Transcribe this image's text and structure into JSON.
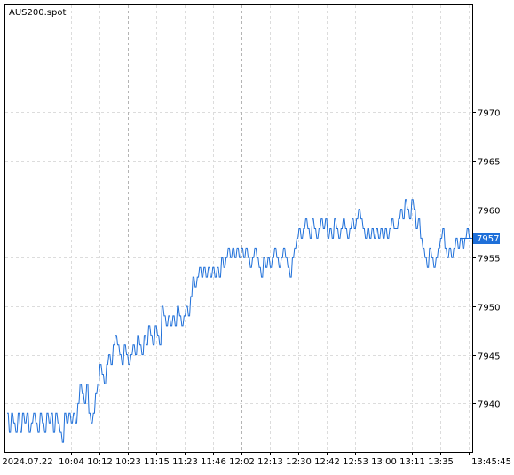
{
  "chart_data": {
    "type": "line",
    "symbol": "AUS200.spot",
    "ylim": [
      7935,
      7981
    ],
    "y_ticks": [
      7940,
      7945,
      7950,
      7955,
      7960,
      7965,
      7970
    ],
    "y_tick_labels": [
      "7940",
      "7945",
      "7950",
      "7955",
      "7960",
      "7965",
      "7970"
    ],
    "x_tick_labels": [
      "2024.07.22",
      "10:04",
      "10:12",
      "10:23",
      "11:15",
      "11:23",
      "11:46",
      "12:02",
      "12:13",
      "12:30",
      "12:42",
      "12:53",
      "13:00",
      "13:11",
      "13:35",
      "13:45:45"
    ],
    "last_price": 7957,
    "last_price_label": "7957",
    "series_color": "#1e6fd9",
    "grid": true,
    "grid_style": "dashed",
    "ticks_per_bar": 2,
    "series": [
      {
        "values": [
          7939,
          7937,
          7939,
          7938,
          7937,
          7939,
          7937,
          7939,
          7938,
          7939,
          7937,
          7938,
          7939,
          7938,
          7937,
          7939,
          7938,
          7937,
          7939,
          7938,
          7939,
          7937,
          7939,
          7938,
          7937,
          7936,
          7939,
          7938,
          7939,
          7938,
          7939,
          7938,
          7940,
          7942,
          7941,
          7940,
          7942,
          7939,
          7938,
          7939,
          7941,
          7942,
          7944,
          7943,
          7942,
          7944,
          7945,
          7944,
          7946,
          7947,
          7946,
          7945,
          7944,
          7946,
          7945,
          7944,
          7945,
          7946,
          7945,
          7947,
          7946,
          7945,
          7947,
          7946,
          7948,
          7947,
          7946,
          7948,
          7947,
          7946,
          7950,
          7949,
          7948,
          7949,
          7948,
          7949,
          7948,
          7950,
          7949,
          7948,
          7949,
          7950,
          7949,
          7951,
          7953,
          7952,
          7953,
          7954,
          7953,
          7954,
          7953,
          7954,
          7953,
          7954,
          7953,
          7954,
          7953,
          7955,
          7954,
          7955,
          7956,
          7955,
          7956,
          7955,
          7956,
          7955,
          7956,
          7955,
          7956,
          7955,
          7954,
          7955,
          7956,
          7955,
          7954,
          7953,
          7955,
          7954,
          7955,
          7954,
          7955,
          7956,
          7955,
          7954,
          7955,
          7956,
          7955,
          7954,
          7953,
          7955,
          7956,
          7957,
          7958,
          7957,
          7958,
          7959,
          7958,
          7957,
          7959,
          7958,
          7957,
          7958,
          7959,
          7958,
          7959,
          7957,
          7958,
          7957,
          7959,
          7958,
          7957,
          7958,
          7959,
          7958,
          7957,
          7958,
          7959,
          7958,
          7959,
          7960,
          7959,
          7958,
          7957,
          7958,
          7957,
          7958,
          7957,
          7958,
          7957,
          7958,
          7957,
          7958,
          7957,
          7958,
          7959,
          7958,
          7958,
          7959,
          7960,
          7959,
          7961,
          7960,
          7959,
          7961,
          7960,
          7958,
          7959,
          7957,
          7956,
          7955,
          7954,
          7956,
          7955,
          7954,
          7955,
          7956,
          7957,
          7958,
          7956,
          7955,
          7956,
          7955,
          7956,
          7957,
          7956,
          7957,
          7956,
          7957,
          7958,
          7957
        ]
      }
    ]
  }
}
